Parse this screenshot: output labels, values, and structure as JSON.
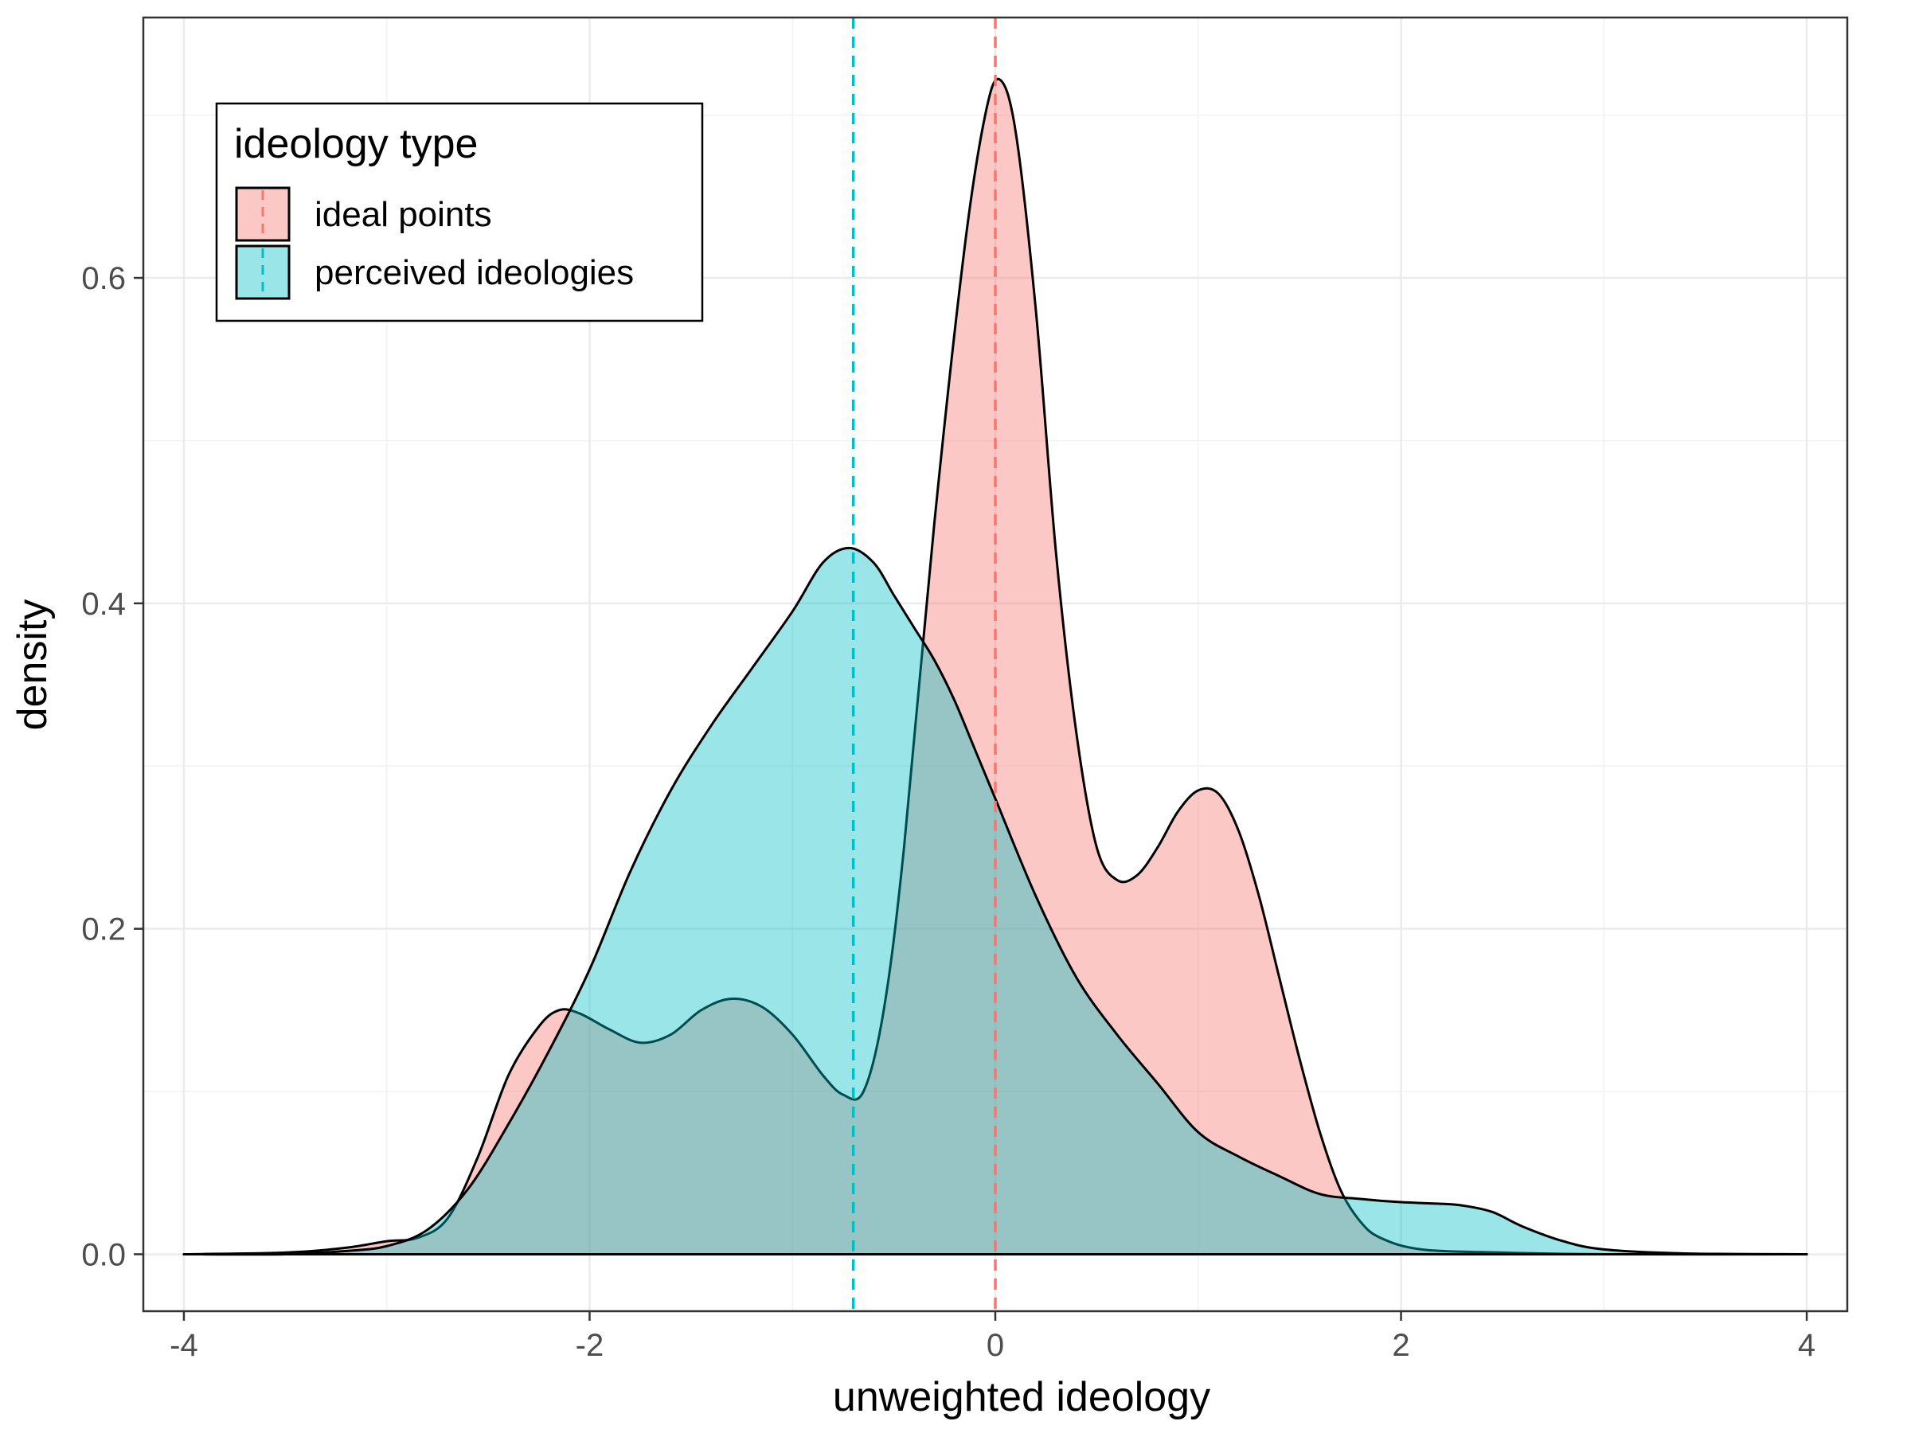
{
  "chart_data": {
    "type": "area",
    "xlabel": "unweighted ideology",
    "ylabel": "density",
    "xlim": [
      -4.2,
      4.2
    ],
    "ylim": [
      -0.035,
      0.76
    ],
    "x_ticks": [
      -4,
      -2,
      0,
      2,
      4
    ],
    "x_tick_labels": [
      "-4",
      "-2",
      "0",
      "2",
      "4"
    ],
    "y_ticks": [
      0.0,
      0.2,
      0.4,
      0.6
    ],
    "y_tick_labels": [
      "0.0",
      "0.2",
      "0.4",
      "0.6"
    ],
    "grid": true,
    "legend": {
      "title": "ideology type",
      "placement": "top-left"
    },
    "series": [
      {
        "name": "ideal points",
        "fill": "#F8766D",
        "mean": 0.0,
        "points": [
          [
            -4.0,
            0.0
          ],
          [
            -3.5,
            0.001
          ],
          [
            -3.2,
            0.004
          ],
          [
            -3.0,
            0.008
          ],
          [
            -2.85,
            0.01
          ],
          [
            -2.7,
            0.022
          ],
          [
            -2.55,
            0.06
          ],
          [
            -2.4,
            0.11
          ],
          [
            -2.25,
            0.14
          ],
          [
            -2.15,
            0.15
          ],
          [
            -2.05,
            0.148
          ],
          [
            -1.9,
            0.138
          ],
          [
            -1.75,
            0.13
          ],
          [
            -1.6,
            0.135
          ],
          [
            -1.45,
            0.15
          ],
          [
            -1.3,
            0.157
          ],
          [
            -1.15,
            0.152
          ],
          [
            -1.0,
            0.135
          ],
          [
            -0.85,
            0.11
          ],
          [
            -0.75,
            0.098
          ],
          [
            -0.65,
            0.1
          ],
          [
            -0.55,
            0.15
          ],
          [
            -0.45,
            0.25
          ],
          [
            -0.3,
            0.45
          ],
          [
            -0.15,
            0.62
          ],
          [
            -0.05,
            0.7
          ],
          [
            0.02,
            0.722
          ],
          [
            0.1,
            0.69
          ],
          [
            0.2,
            0.58
          ],
          [
            0.3,
            0.43
          ],
          [
            0.4,
            0.32
          ],
          [
            0.5,
            0.25
          ],
          [
            0.6,
            0.23
          ],
          [
            0.7,
            0.233
          ],
          [
            0.8,
            0.25
          ],
          [
            0.9,
            0.272
          ],
          [
            1.0,
            0.285
          ],
          [
            1.1,
            0.283
          ],
          [
            1.2,
            0.26
          ],
          [
            1.3,
            0.22
          ],
          [
            1.4,
            0.17
          ],
          [
            1.5,
            0.12
          ],
          [
            1.6,
            0.075
          ],
          [
            1.7,
            0.04
          ],
          [
            1.8,
            0.02
          ],
          [
            1.9,
            0.01
          ],
          [
            2.1,
            0.003
          ],
          [
            2.5,
            0.001
          ],
          [
            3.0,
            0.0
          ],
          [
            4.0,
            0.0
          ]
        ]
      },
      {
        "name": "perceived ideologies",
        "fill": "#00BFC4",
        "mean": -0.7,
        "points": [
          [
            -4.0,
            0.0
          ],
          [
            -3.5,
            0.0
          ],
          [
            -3.2,
            0.002
          ],
          [
            -3.0,
            0.005
          ],
          [
            -2.8,
            0.015
          ],
          [
            -2.6,
            0.04
          ],
          [
            -2.4,
            0.08
          ],
          [
            -2.2,
            0.125
          ],
          [
            -2.0,
            0.175
          ],
          [
            -1.8,
            0.235
          ],
          [
            -1.6,
            0.285
          ],
          [
            -1.4,
            0.325
          ],
          [
            -1.2,
            0.36
          ],
          [
            -1.0,
            0.395
          ],
          [
            -0.85,
            0.425
          ],
          [
            -0.72,
            0.434
          ],
          [
            -0.6,
            0.425
          ],
          [
            -0.5,
            0.405
          ],
          [
            -0.4,
            0.385
          ],
          [
            -0.3,
            0.365
          ],
          [
            -0.2,
            0.34
          ],
          [
            -0.1,
            0.31
          ],
          [
            0.0,
            0.28
          ],
          [
            0.2,
            0.22
          ],
          [
            0.4,
            0.17
          ],
          [
            0.6,
            0.135
          ],
          [
            0.8,
            0.105
          ],
          [
            1.0,
            0.075
          ],
          [
            1.2,
            0.06
          ],
          [
            1.4,
            0.048
          ],
          [
            1.6,
            0.037
          ],
          [
            1.8,
            0.034
          ],
          [
            2.0,
            0.032
          ],
          [
            2.2,
            0.031
          ],
          [
            2.3,
            0.03
          ],
          [
            2.45,
            0.026
          ],
          [
            2.6,
            0.017
          ],
          [
            2.8,
            0.008
          ],
          [
            3.0,
            0.003
          ],
          [
            3.4,
            0.0005
          ],
          [
            4.0,
            0.0
          ]
        ]
      }
    ]
  }
}
